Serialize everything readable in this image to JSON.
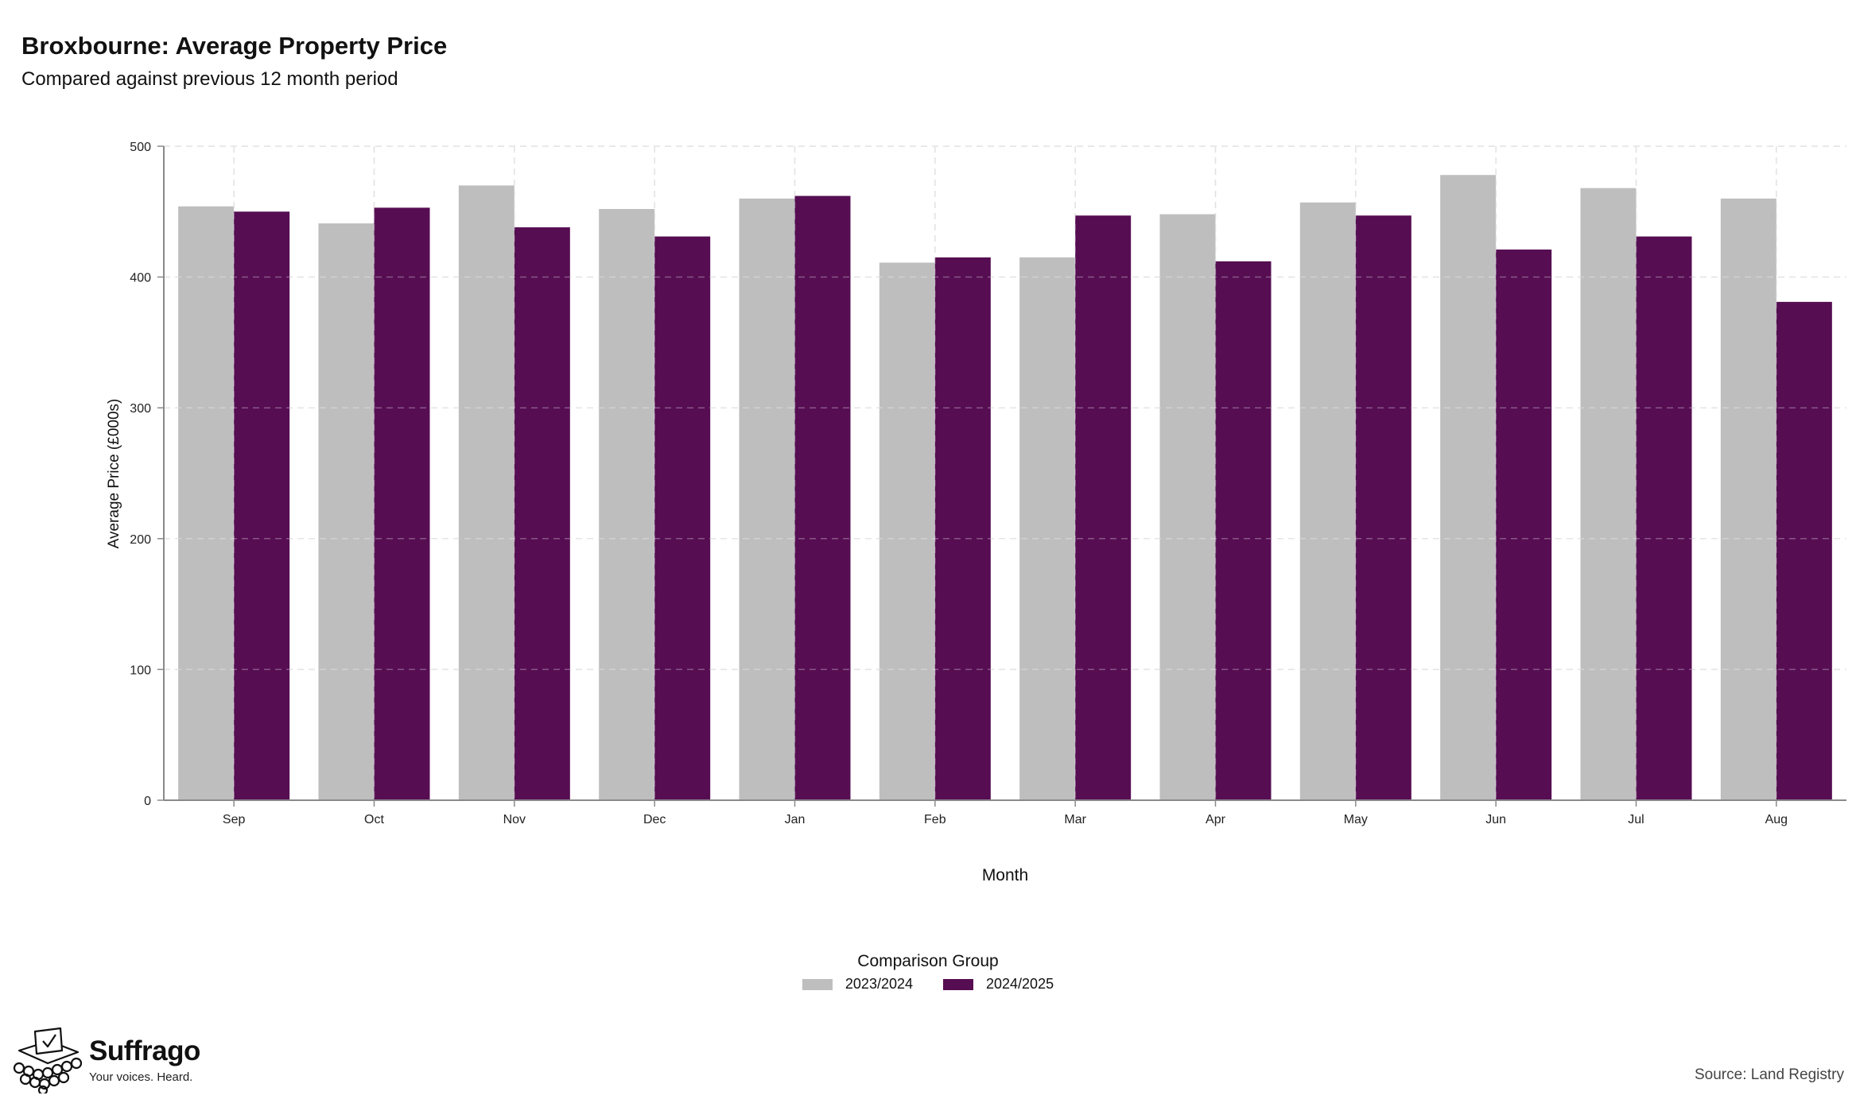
{
  "header": {
    "title": "Broxbourne: Average Property Price",
    "subtitle": "Compared against previous 12 month period"
  },
  "chart_data": {
    "type": "bar",
    "title": "Broxbourne: Average Property Price",
    "subtitle": "Compared against previous 12 month period",
    "xlabel": "Month",
    "ylabel": "Average Price (£000s)",
    "ylim": [
      0,
      500
    ],
    "yticks": [
      0,
      100,
      200,
      300,
      400,
      500
    ],
    "grid": true,
    "legend_title": "Comparison Group",
    "legend_position": "bottom",
    "categories": [
      "Sep",
      "Oct",
      "Nov",
      "Dec",
      "Jan",
      "Feb",
      "Mar",
      "Apr",
      "May",
      "Jun",
      "Jul",
      "Aug"
    ],
    "series": [
      {
        "name": "2023/2024",
        "color": "#bebebe",
        "values": [
          454,
          441,
          470,
          452,
          460,
          411,
          415,
          448,
          457,
          478,
          468,
          460
        ]
      },
      {
        "name": "2024/2025",
        "color": "#560d52",
        "values": [
          450,
          453,
          438,
          431,
          462,
          415,
          447,
          412,
          447,
          421,
          431,
          381
        ]
      }
    ]
  },
  "branding": {
    "name": "Suffrago",
    "tagline": "Your voices. Heard.",
    "logo_icon": "ballot-box-icon"
  },
  "footer": {
    "source": "Source: Land Registry"
  }
}
